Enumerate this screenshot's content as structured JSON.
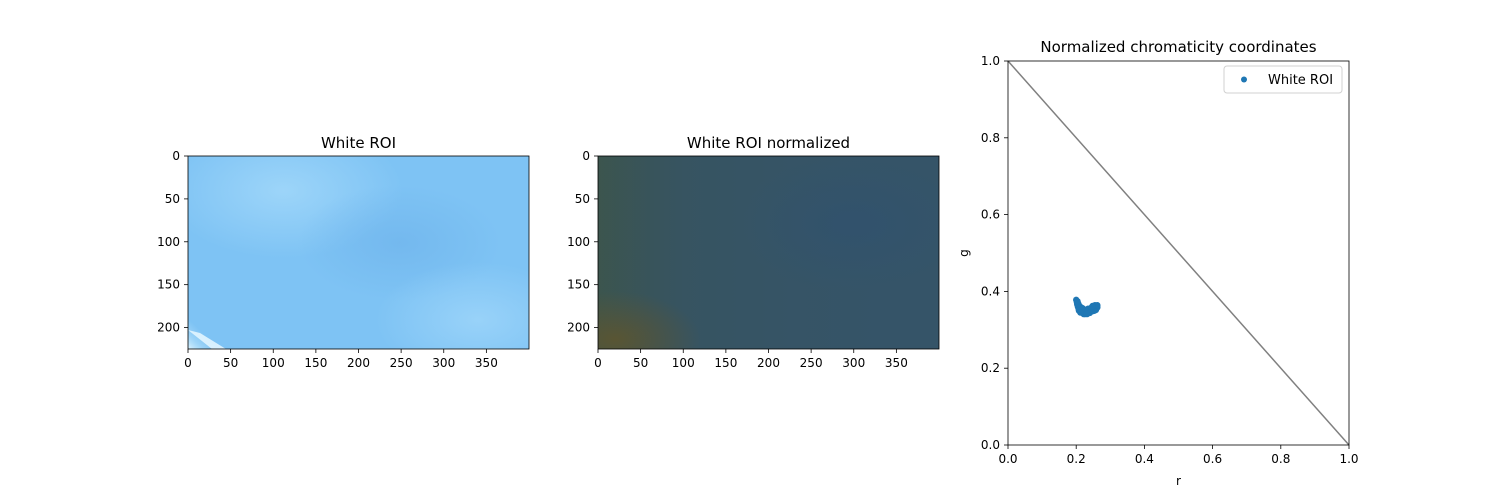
{
  "chart_data": [
    {
      "type": "heatmap",
      "title": "White ROI",
      "image_width": 400,
      "image_height": 225,
      "x_ticks": [
        0,
        50,
        100,
        150,
        200,
        250,
        300,
        350
      ],
      "y_ticks": [
        0,
        50,
        100,
        150,
        200
      ],
      "colors": {
        "base": "#7ec3f4",
        "light": "#a6dafa",
        "shade": "#74b9ef",
        "highlight": "#d2efff"
      }
    },
    {
      "type": "heatmap",
      "title": "White ROI normalized",
      "image_width": 400,
      "image_height": 225,
      "x_ticks": [
        0,
        50,
        100,
        150,
        200,
        250,
        300,
        350
      ],
      "y_ticks": [
        0,
        50,
        100,
        150,
        200
      ],
      "colors": {
        "base": "#355468",
        "left_tint": "#3f5544",
        "corner": "#5a5430"
      }
    },
    {
      "type": "scatter",
      "title": "Normalized chromaticity coordinates",
      "xlabel": "r",
      "ylabel": "g",
      "xlim": [
        0,
        1
      ],
      "ylim": [
        0,
        1
      ],
      "x_ticks": [
        "0.0",
        "0.2",
        "0.4",
        "0.6",
        "0.8",
        "1.0"
      ],
      "y_ticks": [
        "0.0",
        "0.2",
        "0.4",
        "0.6",
        "0.8",
        "1.0"
      ],
      "legend": "top-right",
      "reference_line": {
        "x": [
          0,
          1
        ],
        "y": [
          1,
          0
        ],
        "color": "#808080"
      },
      "series": [
        {
          "name": "White ROI",
          "color": "#1f77b4",
          "points": [
            [
              0.2,
              0.378
            ],
            [
              0.202,
              0.372
            ],
            [
              0.203,
              0.366
            ],
            [
              0.205,
              0.36
            ],
            [
              0.207,
              0.355
            ],
            [
              0.21,
              0.358
            ],
            [
              0.212,
              0.352
            ],
            [
              0.214,
              0.348
            ],
            [
              0.216,
              0.346
            ],
            [
              0.218,
              0.344
            ],
            [
              0.22,
              0.343
            ],
            [
              0.222,
              0.342
            ],
            [
              0.224,
              0.342
            ],
            [
              0.226,
              0.343
            ],
            [
              0.228,
              0.345
            ],
            [
              0.23,
              0.346
            ],
            [
              0.232,
              0.348
            ],
            [
              0.234,
              0.347
            ],
            [
              0.236,
              0.349
            ],
            [
              0.238,
              0.351
            ],
            [
              0.24,
              0.35
            ],
            [
              0.242,
              0.352
            ],
            [
              0.244,
              0.354
            ],
            [
              0.246,
              0.353
            ],
            [
              0.248,
              0.356
            ],
            [
              0.25,
              0.355
            ],
            [
              0.252,
              0.357
            ],
            [
              0.254,
              0.358
            ],
            [
              0.256,
              0.36
            ],
            [
              0.258,
              0.359
            ],
            [
              0.26,
              0.361
            ],
            [
              0.262,
              0.358
            ],
            [
              0.258,
              0.352
            ],
            [
              0.254,
              0.35
            ],
            [
              0.25,
              0.349
            ],
            [
              0.246,
              0.348
            ],
            [
              0.242,
              0.347
            ],
            [
              0.238,
              0.346
            ],
            [
              0.234,
              0.344
            ],
            [
              0.23,
              0.343
            ],
            [
              0.226,
              0.341
            ],
            [
              0.222,
              0.341
            ],
            [
              0.218,
              0.348
            ],
            [
              0.214,
              0.354
            ],
            [
              0.21,
              0.362
            ],
            [
              0.206,
              0.368
            ],
            [
              0.204,
              0.374
            ],
            [
              0.208,
              0.35
            ],
            [
              0.215,
              0.358
            ],
            [
              0.225,
              0.352
            ],
            [
              0.235,
              0.355
            ],
            [
              0.245,
              0.358
            ],
            [
              0.255,
              0.364
            ],
            [
              0.262,
              0.364
            ],
            [
              0.248,
              0.362
            ],
            [
              0.228,
              0.35
            ],
            [
              0.219,
              0.356
            ],
            [
              0.24,
              0.344
            ],
            [
              0.232,
              0.341
            ],
            [
              0.212,
              0.345
            ]
          ]
        }
      ]
    }
  ]
}
